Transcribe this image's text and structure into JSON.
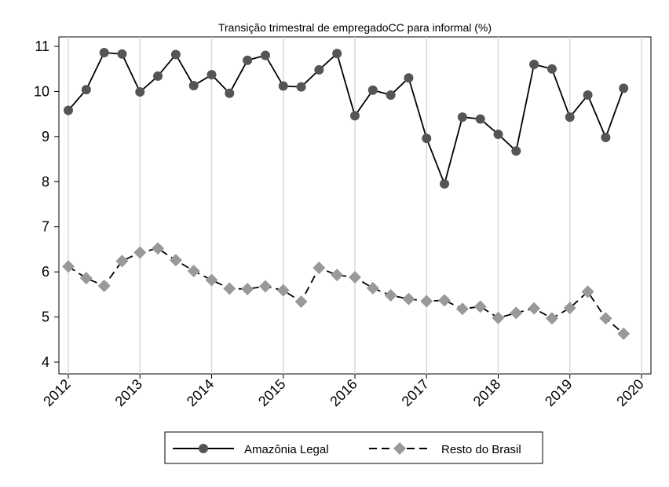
{
  "chart_data": {
    "type": "line",
    "title": "Transição trimestral de empregadoCC para informal (%)",
    "xlabel": "",
    "ylabel": "",
    "xlim": [
      2012,
      2020
    ],
    "ylim": [
      3.75,
      11.25
    ],
    "x_ticks": [
      "2012",
      "2013",
      "2014",
      "2015",
      "2016",
      "2017",
      "2018",
      "2019",
      "2020"
    ],
    "y_ticks": [
      "4",
      "5",
      "6",
      "7",
      "8",
      "9",
      "10",
      "11"
    ],
    "grid": "vertical",
    "legend_position": "bottom",
    "x": [
      2012.0,
      2012.25,
      2012.5,
      2012.75,
      2013.0,
      2013.25,
      2013.5,
      2013.75,
      2014.0,
      2014.25,
      2014.5,
      2014.75,
      2015.0,
      2015.25,
      2015.5,
      2015.75,
      2016.0,
      2016.25,
      2016.5,
      2016.75,
      2017.0,
      2017.25,
      2017.5,
      2017.75,
      2018.0,
      2018.25,
      2018.5,
      2018.75,
      2019.0,
      2019.25,
      2019.5,
      2019.75
    ],
    "series": [
      {
        "name": "Amazônia Legal",
        "marker": "circle",
        "line": "solid",
        "color": "#555555",
        "values": [
          9.58,
          10.04,
          10.86,
          10.83,
          9.99,
          10.34,
          10.82,
          10.13,
          10.37,
          9.96,
          10.69,
          10.8,
          10.12,
          10.1,
          10.48,
          10.84,
          9.46,
          10.03,
          9.92,
          10.3,
          8.96,
          7.95,
          9.43,
          9.39,
          9.05,
          8.68,
          10.6,
          10.5,
          9.43,
          9.92,
          8.98,
          10.07
        ]
      },
      {
        "name": "Resto do Brasil",
        "marker": "diamond",
        "line": "dashed",
        "color": "#999999",
        "values": [
          6.12,
          5.86,
          5.69,
          6.24,
          6.43,
          6.52,
          6.26,
          6.02,
          5.82,
          5.63,
          5.62,
          5.68,
          5.59,
          5.34,
          6.09,
          5.93,
          5.88,
          5.64,
          5.48,
          5.4,
          5.35,
          5.37,
          5.18,
          5.23,
          4.98,
          5.09,
          5.19,
          4.97,
          5.2,
          5.56,
          4.97,
          4.63
        ]
      }
    ]
  }
}
